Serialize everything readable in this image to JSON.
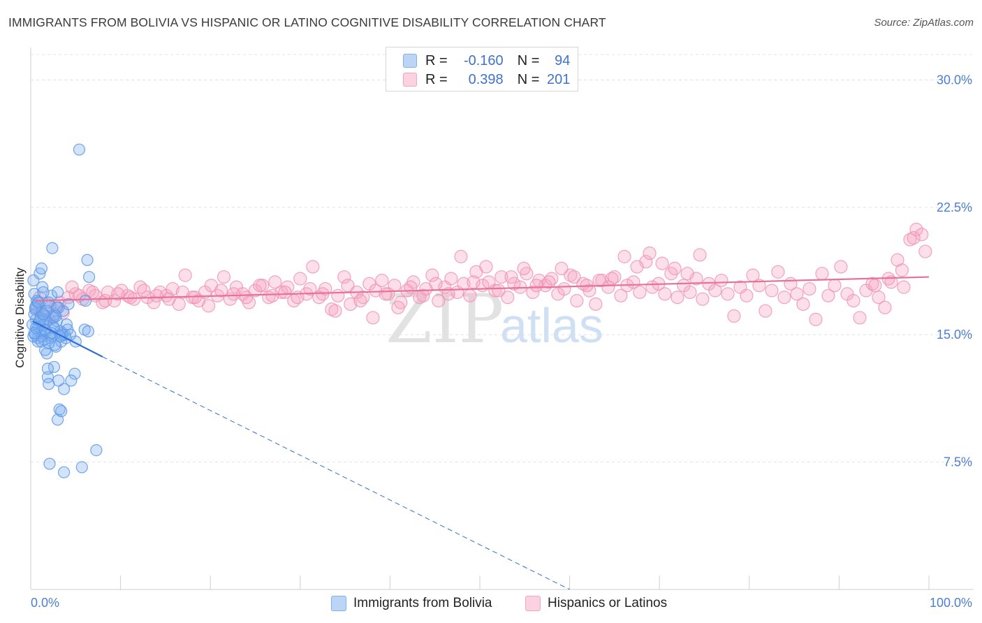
{
  "title": "IMMIGRANTS FROM BOLIVIA VS HISPANIC OR LATINO COGNITIVE DISABILITY CORRELATION CHART",
  "source": "Source: ZipAtlas.com",
  "watermark": {
    "zip": "ZIP",
    "atlas": "atlas"
  },
  "legend": {
    "rows": [
      {
        "r_label": "R =",
        "r_value": "-0.160",
        "n_label": "N =",
        "n_value": "94",
        "color": "#7fb0f0"
      },
      {
        "r_label": "R =",
        "r_value": "0.398",
        "n_label": "N =",
        "n_value": "201",
        "color": "#f5a3bf"
      }
    ]
  },
  "bottom_legend": {
    "items": [
      {
        "label": "Immigrants from Bolivia",
        "color": "#7fb0f0"
      },
      {
        "label": "Hispanics or Latinos",
        "color": "#f5a3bf"
      }
    ]
  },
  "chart_data": {
    "type": "scatter",
    "title": "IMMIGRANTS FROM BOLIVIA VS HISPANIC OR LATINO COGNITIVE DISABILITY CORRELATION CHART",
    "xlabel": "",
    "ylabel": "Cognitive Disability",
    "xlim": [
      0,
      100
    ],
    "ylim": [
      0,
      31.5
    ],
    "x_tick_labels": [
      "0.0%",
      "100.0%"
    ],
    "y_ticks": [
      7.5,
      15.0,
      22.5,
      30.0
    ],
    "y_tick_labels": [
      "7.5%",
      "15.0%",
      "22.5%",
      "30.0%"
    ],
    "grid": true,
    "series": [
      {
        "name": "Immigrants from Bolivia",
        "color": "#7fb0f0",
        "line_color": "#2f6fd6",
        "trend": {
          "x0": 0.2,
          "y0": 15.8,
          "x1": 8.0,
          "y1": 13.7,
          "dashed_to_x": 60,
          "dashed_to_y": 0.0
        },
        "points": [
          [
            0.3,
            18.2
          ],
          [
            0.4,
            17.4
          ],
          [
            0.5,
            16.5
          ],
          [
            0.6,
            15.9
          ],
          [
            0.7,
            15.3
          ],
          [
            0.8,
            14.8
          ],
          [
            0.9,
            16.9
          ],
          [
            1.0,
            18.6
          ],
          [
            1.1,
            15.1
          ],
          [
            1.2,
            16.3
          ],
          [
            1.3,
            17.8
          ],
          [
            1.4,
            15.6
          ],
          [
            1.5,
            14.7
          ],
          [
            1.6,
            16.1
          ],
          [
            1.7,
            15.2
          ],
          [
            1.8,
            13.9
          ],
          [
            1.9,
            12.5
          ],
          [
            2.0,
            12.1
          ],
          [
            2.1,
            15.0
          ],
          [
            2.2,
            16.7
          ],
          [
            2.3,
            17.3
          ],
          [
            2.4,
            14.9
          ],
          [
            2.5,
            15.5
          ],
          [
            2.6,
            13.1
          ],
          [
            2.7,
            16.2
          ],
          [
            2.8,
            14.3
          ],
          [
            2.9,
            15.8
          ],
          [
            3.0,
            17.5
          ],
          [
            3.1,
            12.3
          ],
          [
            3.2,
            10.6
          ],
          [
            3.3,
            15.2
          ],
          [
            3.4,
            14.6
          ],
          [
            3.5,
            15.1
          ],
          [
            3.6,
            16.4
          ],
          [
            3.7,
            11.8
          ],
          [
            3.8,
            15.0
          ],
          [
            3.9,
            14.8
          ],
          [
            4.0,
            15.6
          ],
          [
            4.1,
            15.3
          ],
          [
            4.2,
            16.8
          ],
          [
            1.2,
            18.9
          ],
          [
            2.4,
            20.1
          ],
          [
            0.8,
            14.6
          ],
          [
            1.6,
            14.1
          ],
          [
            2.0,
            16.9
          ],
          [
            1.4,
            17.5
          ],
          [
            0.6,
            16.7
          ],
          [
            3.0,
            10.0
          ],
          [
            2.1,
            7.4
          ],
          [
            5.4,
            25.9
          ],
          [
            5.7,
            7.2
          ],
          [
            7.3,
            8.2
          ],
          [
            3.7,
            6.9
          ],
          [
            3.4,
            10.5
          ],
          [
            6.3,
            19.4
          ],
          [
            6.5,
            18.4
          ],
          [
            6.0,
            15.3
          ],
          [
            6.4,
            15.2
          ],
          [
            5.0,
            14.6
          ],
          [
            4.9,
            12.7
          ],
          [
            4.5,
            12.3
          ],
          [
            6.1,
            17.0
          ],
          [
            0.5,
            15.0
          ],
          [
            0.9,
            15.5
          ],
          [
            1.3,
            14.9
          ],
          [
            1.7,
            15.7
          ],
          [
            2.2,
            14.8
          ],
          [
            2.6,
            15.4
          ],
          [
            0.4,
            16.2
          ],
          [
            0.7,
            17.0
          ],
          [
            1.1,
            16.0
          ],
          [
            1.5,
            15.9
          ],
          [
            1.9,
            13.0
          ],
          [
            2.3,
            15.1
          ],
          [
            2.7,
            14.4
          ],
          [
            3.1,
            16.6
          ],
          [
            3.5,
            15.0
          ],
          [
            0.2,
            15.6
          ],
          [
            0.3,
            14.9
          ],
          [
            0.6,
            15.4
          ],
          [
            1.0,
            15.8
          ],
          [
            1.8,
            16.4
          ],
          [
            2.5,
            16.0
          ],
          [
            2.9,
            16.6
          ],
          [
            3.3,
            14.9
          ],
          [
            4.4,
            15.0
          ],
          [
            0.5,
            16.6
          ],
          [
            0.8,
            16.9
          ],
          [
            1.2,
            14.6
          ],
          [
            1.6,
            15.3
          ],
          [
            2.0,
            14.5
          ],
          [
            0.4,
            15.1
          ],
          [
            2.8,
            16.1
          ],
          [
            1.4,
            16.2
          ]
        ]
      },
      {
        "name": "Hispanics or Latinos",
        "color": "#f5a3bf",
        "line_color": "#e5729a",
        "trend": {
          "x0": 0.5,
          "y0": 17.0,
          "x1": 100,
          "y1": 18.4
        },
        "points": [
          [
            0.6,
            16.5
          ],
          [
            1.3,
            16.2
          ],
          [
            2.0,
            15.9
          ],
          [
            2.8,
            16.7
          ],
          [
            3.6,
            16.3
          ],
          [
            4.2,
            17.2
          ],
          [
            5.0,
            17.4
          ],
          [
            5.8,
            17.1
          ],
          [
            6.5,
            17.6
          ],
          [
            7.2,
            17.3
          ],
          [
            8.0,
            16.9
          ],
          [
            8.6,
            17.5
          ],
          [
            9.3,
            17.0
          ],
          [
            10.1,
            17.6
          ],
          [
            10.8,
            17.3
          ],
          [
            11.5,
            17.1
          ],
          [
            12.2,
            17.8
          ],
          [
            13.0,
            17.2
          ],
          [
            13.7,
            16.9
          ],
          [
            14.4,
            17.5
          ],
          [
            15.1,
            17.3
          ],
          [
            15.8,
            17.7
          ],
          [
            16.5,
            16.8
          ],
          [
            17.2,
            18.5
          ],
          [
            18.0,
            17.2
          ],
          [
            18.7,
            17.0
          ],
          [
            19.4,
            17.5
          ],
          [
            20.1,
            17.9
          ],
          [
            20.8,
            17.3
          ],
          [
            21.5,
            18.4
          ],
          [
            22.2,
            17.1
          ],
          [
            22.9,
            17.8
          ],
          [
            23.6,
            17.4
          ],
          [
            24.3,
            16.9
          ],
          [
            25.0,
            17.6
          ],
          [
            25.8,
            17.9
          ],
          [
            26.5,
            17.2
          ],
          [
            27.2,
            18.1
          ],
          [
            27.9,
            17.5
          ],
          [
            28.6,
            17.8
          ],
          [
            29.3,
            17.0
          ],
          [
            30.0,
            18.3
          ],
          [
            30.7,
            17.4
          ],
          [
            31.4,
            19.0
          ],
          [
            32.1,
            17.2
          ],
          [
            32.8,
            17.7
          ],
          [
            33.5,
            16.5
          ],
          [
            34.2,
            17.3
          ],
          [
            34.9,
            18.4
          ],
          [
            35.6,
            16.8
          ],
          [
            36.3,
            17.5
          ],
          [
            37.0,
            17.2
          ],
          [
            37.7,
            18.0
          ],
          [
            38.4,
            17.6
          ],
          [
            39.1,
            18.2
          ],
          [
            39.8,
            17.4
          ],
          [
            40.5,
            17.9
          ],
          [
            41.2,
            16.9
          ],
          [
            41.9,
            17.6
          ],
          [
            42.6,
            18.1
          ],
          [
            43.3,
            17.2
          ],
          [
            44.0,
            17.7
          ],
          [
            44.7,
            18.5
          ],
          [
            45.4,
            17.0
          ],
          [
            46.1,
            17.8
          ],
          [
            46.8,
            18.3
          ],
          [
            47.5,
            17.5
          ],
          [
            48.2,
            18.0
          ],
          [
            48.9,
            17.3
          ],
          [
            49.6,
            18.7
          ],
          [
            50.3,
            17.9
          ],
          [
            51.0,
            18.1
          ],
          [
            51.7,
            17.6
          ],
          [
            52.4,
            18.4
          ],
          [
            53.1,
            17.2
          ],
          [
            53.8,
            18.0
          ],
          [
            54.5,
            17.8
          ],
          [
            55.2,
            18.6
          ],
          [
            55.9,
            17.5
          ],
          [
            56.6,
            18.2
          ],
          [
            57.3,
            17.9
          ],
          [
            58.0,
            18.3
          ],
          [
            58.7,
            17.4
          ],
          [
            59.4,
            17.7
          ],
          [
            60.1,
            18.5
          ],
          [
            60.8,
            17.0
          ],
          [
            61.5,
            18.0
          ],
          [
            62.2,
            17.6
          ],
          [
            62.9,
            16.8
          ],
          [
            63.6,
            18.2
          ],
          [
            64.3,
            17.8
          ],
          [
            65.0,
            18.4
          ],
          [
            65.7,
            17.3
          ],
          [
            66.4,
            17.9
          ],
          [
            67.1,
            18.1
          ],
          [
            67.8,
            17.5
          ],
          [
            68.5,
            19.3
          ],
          [
            69.2,
            17.8
          ],
          [
            69.9,
            18.0
          ],
          [
            70.6,
            17.4
          ],
          [
            71.3,
            18.6
          ],
          [
            72.0,
            17.2
          ],
          [
            72.7,
            17.9
          ],
          [
            73.4,
            17.5
          ],
          [
            74.1,
            18.3
          ],
          [
            74.8,
            17.1
          ],
          [
            75.5,
            18.0
          ],
          [
            76.2,
            17.6
          ],
          [
            76.9,
            18.2
          ],
          [
            77.6,
            17.4
          ],
          [
            78.3,
            16.1
          ],
          [
            79.0,
            17.8
          ],
          [
            79.7,
            17.3
          ],
          [
            80.4,
            18.5
          ],
          [
            81.1,
            17.9
          ],
          [
            81.8,
            16.4
          ],
          [
            82.5,
            17.6
          ],
          [
            83.2,
            18.7
          ],
          [
            83.9,
            17.2
          ],
          [
            84.6,
            18.0
          ],
          [
            85.3,
            17.4
          ],
          [
            86.0,
            16.8
          ],
          [
            86.7,
            17.7
          ],
          [
            87.4,
            15.9
          ],
          [
            88.1,
            18.6
          ],
          [
            88.8,
            17.3
          ],
          [
            89.5,
            17.9
          ],
          [
            90.2,
            19.0
          ],
          [
            90.9,
            17.4
          ],
          [
            91.6,
            17.0
          ],
          [
            92.3,
            16.0
          ],
          [
            93.0,
            17.6
          ],
          [
            93.7,
            18.0
          ],
          [
            94.4,
            17.2
          ],
          [
            95.1,
            16.6
          ],
          [
            95.8,
            18.1
          ],
          [
            96.5,
            19.4
          ],
          [
            97.2,
            17.8
          ],
          [
            97.9,
            20.6
          ],
          [
            98.6,
            21.2
          ],
          [
            99.2,
            20.9
          ],
          [
            99.6,
            19.9
          ],
          [
            98.3,
            20.7
          ],
          [
            97.0,
            18.8
          ],
          [
            95.5,
            18.3
          ],
          [
            94.0,
            17.9
          ],
          [
            1.0,
            17.2
          ],
          [
            1.8,
            16.8
          ],
          [
            2.5,
            16.1
          ],
          [
            3.2,
            16.9
          ],
          [
            4.6,
            17.8
          ],
          [
            5.4,
            17.3
          ],
          [
            6.9,
            17.5
          ],
          [
            8.3,
            17.0
          ],
          [
            9.7,
            17.4
          ],
          [
            11.1,
            17.2
          ],
          [
            12.6,
            17.6
          ],
          [
            14.0,
            17.3
          ],
          [
            15.4,
            17.1
          ],
          [
            16.9,
            17.5
          ],
          [
            18.3,
            17.2
          ],
          [
            19.8,
            16.7
          ],
          [
            21.2,
            17.6
          ],
          [
            22.6,
            17.4
          ],
          [
            24.0,
            17.2
          ],
          [
            25.5,
            17.9
          ],
          [
            26.9,
            17.3
          ],
          [
            28.3,
            17.5
          ],
          [
            29.7,
            17.2
          ],
          [
            31.1,
            17.7
          ],
          [
            32.5,
            17.4
          ],
          [
            33.9,
            16.4
          ],
          [
            35.3,
            17.9
          ],
          [
            36.7,
            17.0
          ],
          [
            38.1,
            16.0
          ],
          [
            39.5,
            17.4
          ],
          [
            40.9,
            16.6
          ],
          [
            42.3,
            17.8
          ],
          [
            43.7,
            17.3
          ],
          [
            45.1,
            18.0
          ],
          [
            46.5,
            17.4
          ],
          [
            47.9,
            19.6
          ],
          [
            49.3,
            18.1
          ],
          [
            50.7,
            19.0
          ],
          [
            52.1,
            17.6
          ],
          [
            53.5,
            18.4
          ],
          [
            54.9,
            18.9
          ],
          [
            56.3,
            17.9
          ],
          [
            57.7,
            18.1
          ],
          [
            59.1,
            18.9
          ],
          [
            60.5,
            18.4
          ],
          [
            61.9,
            17.9
          ],
          [
            63.3,
            18.2
          ],
          [
            64.7,
            18.3
          ],
          [
            66.1,
            19.6
          ],
          [
            67.5,
            19.0
          ],
          [
            68.9,
            19.8
          ],
          [
            70.3,
            19.2
          ],
          [
            71.7,
            18.9
          ],
          [
            73.1,
            18.6
          ],
          [
            74.5,
            19.7
          ]
        ]
      }
    ]
  }
}
